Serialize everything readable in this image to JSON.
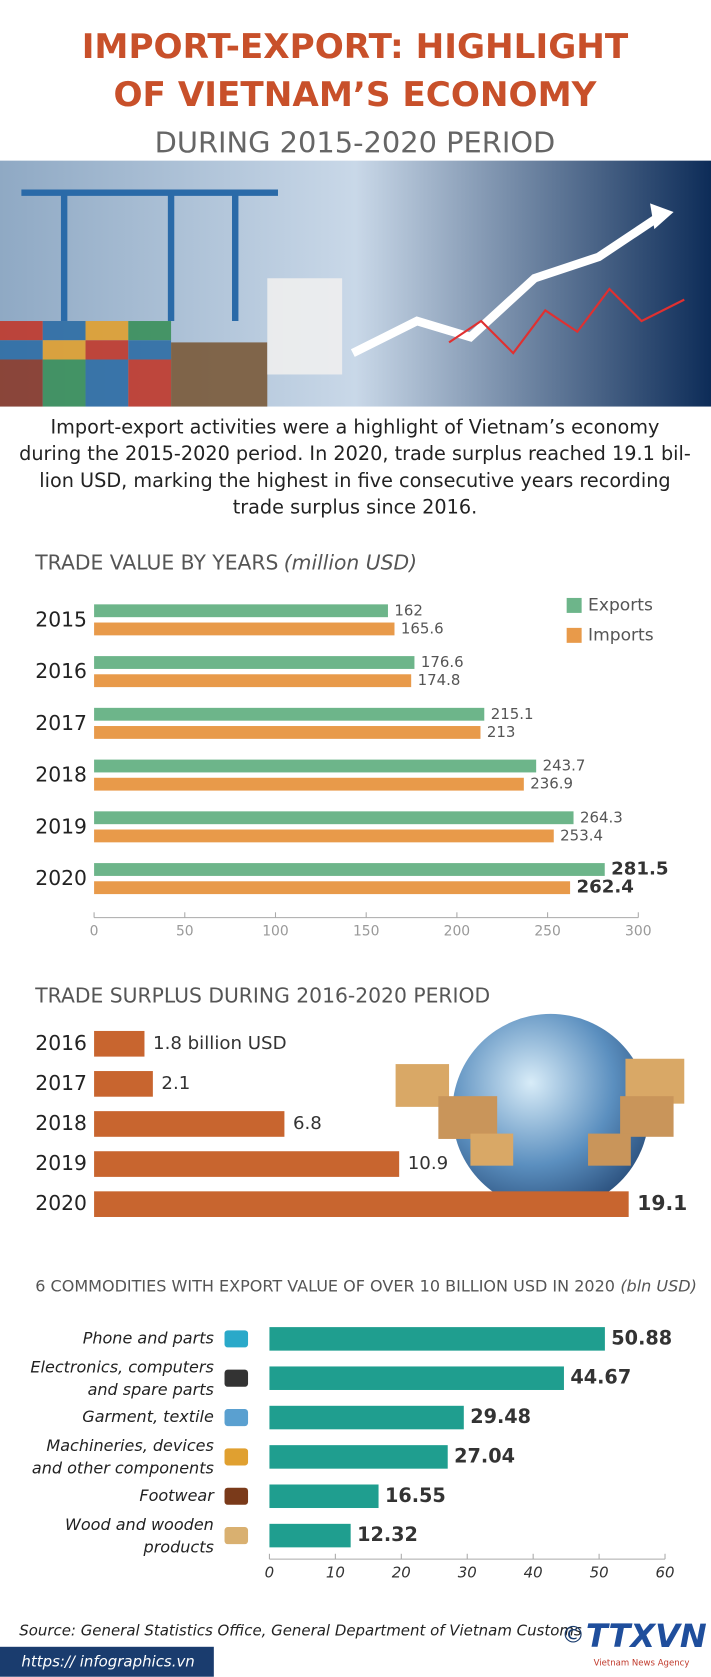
{
  "header": {
    "title_lines": [
      "IMPORT-EXPORT: HIGHLIGHT",
      "OF VIETNAM’S ECONOMY"
    ],
    "subtitle": "DURING 2015-2020 PERIOD"
  },
  "intro_lines": [
    "Import-export activities were a highlight of Vietnam’s economy",
    "during the 2015-2020 period. In 2020, trade surplus reached 19.1 bil-",
    "lion USD, marking the highest in five consecutive years recording",
    "trade surplus since 2016."
  ],
  "chart_data": [
    {
      "type": "hbar",
      "title": "TRADE VALUE BY YEARS",
      "unit": "(million USD)",
      "categories": [
        "2015",
        "2016",
        "2017",
        "2018",
        "2019",
        "2020"
      ],
      "series": [
        {
          "name": "Exports",
          "color": "#6db58a",
          "values": [
            162,
            176.6,
            215.1,
            243.7,
            264.3,
            281.5
          ]
        },
        {
          "name": "Imports",
          "color": "#e89a4a",
          "values": [
            165.6,
            174.8,
            213,
            236.9,
            253.4,
            262.4
          ]
        }
      ],
      "xlim": [
        0,
        300
      ],
      "xticks": [
        0,
        50,
        100,
        150,
        200,
        250,
        300
      ],
      "legend": "top-right"
    },
    {
      "type": "hbar",
      "title": "TRADE SURPLUS DURING 2016-2020 PERIOD",
      "categories": [
        "2016",
        "2017",
        "2018",
        "2019",
        "2020"
      ],
      "values": [
        1.8,
        2.1,
        6.8,
        10.9,
        19.1
      ],
      "value_labels": [
        "1.8 billion USD",
        "2.1",
        "6.8",
        "10.9",
        "19.1"
      ],
      "color": "#c8652f"
    },
    {
      "type": "hbar",
      "title": "6 COMMODITIES WITH EXPORT VALUE OF OVER 10 BILLION USD IN  2020",
      "unit": "(bln USD)",
      "categories": [
        "Phone and parts",
        "Electronics, computers\nand spare parts",
        "Garment, textile",
        "Machineries, devices\nand other components",
        "Footwear",
        "Wood and wooden\nproducts"
      ],
      "values": [
        50.88,
        44.67,
        29.48,
        27.04,
        16.55,
        12.32
      ],
      "color": "#1f9e8f",
      "xlim": [
        0,
        60
      ],
      "xticks": [
        0,
        10,
        20,
        30,
        40,
        50,
        60
      ]
    }
  ],
  "source": "Source: General Statistics Office, General Department of Vietnam Customs",
  "url": "https:// infographics.vn",
  "logo": {
    "copyright": "©",
    "name": "TTXVN",
    "agency": "Vietnam News Agency"
  }
}
